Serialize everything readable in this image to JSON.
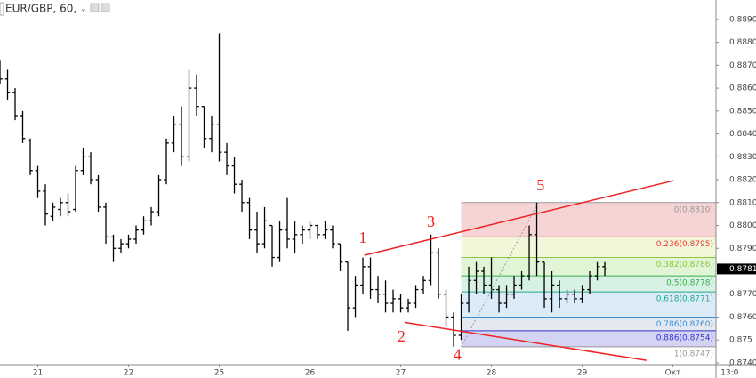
{
  "chart_data": {
    "type": "ohlc",
    "title": "EUR/GBP, 60,",
    "color": "#000000",
    "x": [
      0,
      1,
      2,
      3,
      4,
      5,
      6,
      7,
      8,
      9,
      10,
      11,
      12,
      13,
      14,
      15,
      16,
      17,
      18,
      19,
      20,
      21,
      22,
      23,
      24,
      25,
      26,
      27,
      28,
      29,
      30,
      31,
      32,
      33,
      34,
      35,
      36,
      37,
      38,
      39,
      40,
      41,
      42,
      43,
      44,
      45,
      46,
      47,
      48,
      49,
      50,
      51,
      52,
      53,
      54,
      55,
      56,
      57,
      58,
      59,
      60,
      61,
      62,
      63,
      64,
      65,
      66,
      67,
      68,
      69,
      70,
      71,
      72,
      73,
      74,
      75,
      76,
      77,
      78,
      79,
      80
    ],
    "open": [
      0.887,
      0.8864,
      0.8858,
      0.8848,
      0.8837,
      0.8824,
      0.8815,
      0.8804,
      0.8807,
      0.881,
      0.8807,
      0.8824,
      0.883,
      0.882,
      0.8808,
      0.8795,
      0.879,
      0.8792,
      0.8794,
      0.8798,
      0.8802,
      0.8806,
      0.882,
      0.8836,
      0.8844,
      0.883,
      0.886,
      0.8852,
      0.8838,
      0.8844,
      0.8832,
      0.8826,
      0.8818,
      0.881,
      0.8798,
      0.8792,
      0.88,
      0.8786,
      0.8798,
      0.8794,
      0.8796,
      0.8798,
      0.88,
      0.8796,
      0.8798,
      0.8792,
      0.8784,
      0.8764,
      0.8774,
      0.8782,
      0.8772,
      0.877,
      0.8766,
      0.8768,
      0.8764,
      0.8766,
      0.8772,
      0.8776,
      0.8788,
      0.877,
      0.876,
      0.8752,
      0.8766,
      0.8776,
      0.878,
      0.8774,
      0.8772,
      0.8766,
      0.877,
      0.8774,
      0.8778,
      0.8796,
      0.8784,
      0.8768,
      0.8774,
      0.8768,
      0.877,
      0.8768,
      0.8772,
      0.8778,
      0.8782
    ],
    "high": [
      0.8872,
      0.8868,
      0.886,
      0.885,
      0.8838,
      0.8826,
      0.8818,
      0.881,
      0.8812,
      0.8814,
      0.8826,
      0.8834,
      0.8832,
      0.8822,
      0.881,
      0.8796,
      0.8794,
      0.8796,
      0.88,
      0.8804,
      0.8808,
      0.8822,
      0.8838,
      0.8848,
      0.8852,
      0.8868,
      0.8866,
      0.8852,
      0.8848,
      0.8884,
      0.8836,
      0.883,
      0.882,
      0.8812,
      0.8806,
      0.8808,
      0.88,
      0.8802,
      0.8812,
      0.8802,
      0.88,
      0.8802,
      0.88,
      0.8802,
      0.88,
      0.8792,
      0.8784,
      0.8778,
      0.8786,
      0.8786,
      0.8778,
      0.8776,
      0.8772,
      0.877,
      0.8768,
      0.8774,
      0.8778,
      0.8796,
      0.879,
      0.8772,
      0.8762,
      0.877,
      0.8782,
      0.8784,
      0.8782,
      0.8786,
      0.8774,
      0.8774,
      0.8778,
      0.878,
      0.88,
      0.881,
      0.8784,
      0.878,
      0.8776,
      0.8772,
      0.8772,
      0.8774,
      0.878,
      0.8784,
      0.8784
    ],
    "low": [
      0.8862,
      0.8855,
      0.8846,
      0.8836,
      0.8822,
      0.8812,
      0.88,
      0.8802,
      0.8804,
      0.8804,
      0.8806,
      0.8822,
      0.8818,
      0.8806,
      0.8792,
      0.8784,
      0.8788,
      0.879,
      0.8792,
      0.8796,
      0.88,
      0.8804,
      0.8818,
      0.8832,
      0.8826,
      0.8828,
      0.8848,
      0.8834,
      0.8832,
      0.8828,
      0.8822,
      0.8814,
      0.8806,
      0.8794,
      0.8788,
      0.879,
      0.8782,
      0.8784,
      0.879,
      0.8788,
      0.8792,
      0.8794,
      0.8794,
      0.8794,
      0.879,
      0.878,
      0.8754,
      0.876,
      0.877,
      0.8768,
      0.8766,
      0.8762,
      0.8762,
      0.8762,
      0.8762,
      0.8764,
      0.877,
      0.8774,
      0.8768,
      0.8756,
      0.8747,
      0.875,
      0.8762,
      0.877,
      0.877,
      0.8768,
      0.8762,
      0.8764,
      0.8768,
      0.8772,
      0.8776,
      0.8778,
      0.8764,
      0.8762,
      0.8764,
      0.8766,
      0.8766,
      0.8766,
      0.877,
      0.8776,
      0.8778
    ],
    "close": [
      0.8864,
      0.8858,
      0.8848,
      0.8838,
      0.8824,
      0.8815,
      0.8805,
      0.8808,
      0.881,
      0.8806,
      0.8824,
      0.883,
      0.882,
      0.8808,
      0.8795,
      0.879,
      0.8792,
      0.8794,
      0.8798,
      0.8802,
      0.8806,
      0.882,
      0.8836,
      0.8844,
      0.883,
      0.886,
      0.8852,
      0.8838,
      0.8844,
      0.8832,
      0.8826,
      0.8818,
      0.881,
      0.8798,
      0.8792,
      0.8802,
      0.8786,
      0.8798,
      0.8794,
      0.8796,
      0.8798,
      0.88,
      0.8796,
      0.8798,
      0.8792,
      0.8784,
      0.8764,
      0.8774,
      0.8782,
      0.8772,
      0.877,
      0.8766,
      0.8768,
      0.8764,
      0.8766,
      0.8772,
      0.8776,
      0.8788,
      0.877,
      0.876,
      0.8752,
      0.8766,
      0.8776,
      0.878,
      0.8774,
      0.8772,
      0.8766,
      0.877,
      0.8774,
      0.8778,
      0.8796,
      0.8784,
      0.8768,
      0.8774,
      0.8768,
      0.877,
      0.8768,
      0.8772,
      0.8778,
      0.8782,
      0.8781
    ],
    "xlim": [
      0,
      94.7
    ],
    "xticks": [
      {
        "value": 5,
        "label": "21"
      },
      {
        "value": 17,
        "label": "22"
      },
      {
        "value": 29,
        "label": "25"
      },
      {
        "value": 41,
        "label": "26"
      },
      {
        "value": 53,
        "label": "27"
      },
      {
        "value": 65,
        "label": "28"
      },
      {
        "value": 77,
        "label": "29"
      },
      {
        "value": 89,
        "label": "Окт"
      },
      {
        "value": 96.5,
        "label": "13:0"
      }
    ],
    "ylim": [
      0.87392,
      0.88985
    ],
    "yticks": [
      {
        "value": 0.874,
        "label": "0.8740"
      },
      0.875,
      {
        "value": 0.876,
        "label": "0.8760"
      },
      {
        "value": 0.877,
        "label": "0.8770"
      },
      {
        "value": 0.878,
        "label": "0.8780"
      },
      {
        "value": 0.879,
        "label": "0.8790"
      },
      {
        "value": 0.88,
        "label": "0.8800"
      },
      {
        "value": 0.881,
        "label": "0.8810"
      },
      {
        "value": 0.882,
        "label": "0.8820"
      },
      {
        "value": 0.883,
        "label": "0.8830"
      },
      {
        "value": 0.884,
        "label": "0.8840"
      },
      {
        "value": 0.885,
        "label": "0.8850"
      },
      {
        "value": 0.886,
        "label": "0.8860"
      },
      {
        "value": 0.887,
        "label": "0.8870"
      },
      {
        "value": 0.888,
        "label": "0.8880"
      },
      {
        "value": 0.889,
        "label": "0.8890"
      }
    ],
    "last": {
      "value": 0.8781,
      "label": "0.8781"
    },
    "fib": {
      "x_start": 61,
      "levels": [
        {
          "value": 0.881,
          "label": "0(0.8810)",
          "color": "#999999",
          "fill": "#f5c9c9"
        },
        {
          "value": 0.8795,
          "label": "0.236(0.8795)",
          "color": "#e0403a",
          "fill": "#f0f4cf"
        },
        {
          "value": 0.8786,
          "label": "0.382(0.8786)",
          "color": "#8cc43c",
          "fill": "#d7f2cc"
        },
        {
          "value": 0.8778,
          "label": "0.5(0.8778)",
          "color": "#3ab04a",
          "fill": "#cdeedd"
        },
        {
          "value": 0.8771,
          "label": "0.618(0.8771)",
          "color": "#25a88a",
          "fill": "#d2e6f5"
        },
        {
          "value": 0.876,
          "label": "0.786(0.8760)",
          "color": "#3c8ed0",
          "fill": "#dde4ee"
        },
        {
          "value": 0.8754,
          "label": "0.886(0.8754)",
          "color": "#3434c8",
          "fill": "#c8c8f0"
        },
        {
          "value": 0.8747,
          "label": "1(0.8747)",
          "color": "#999999"
        }
      ]
    },
    "lines": [
      {
        "color": "#ee2222",
        "x": [
          48.2,
          89.1
        ],
        "y": [
          0.8787,
          0.88196
        ]
      },
      {
        "color": "#ee2222",
        "x": [
          53.5,
          85.5
        ],
        "y": [
          0.87577,
          0.87411
        ]
      },
      {
        "color": "#999999",
        "dashed": true,
        "x": [
          61,
          71.2
        ],
        "y": [
          0.8747,
          0.881
        ]
      }
    ],
    "annotations": [
      {
        "text": "1",
        "x": 48,
        "y": 0.8794
      },
      {
        "text": "2",
        "x": 53.1,
        "y": 0.8751
      },
      {
        "text": "3",
        "x": 57,
        "y": 0.8801
      },
      {
        "text": "4",
        "x": 60.5,
        "y": 0.8743
      },
      {
        "text": "5",
        "x": 71.5,
        "y": 0.8817
      }
    ],
    "annotation_color": "#ee2222"
  }
}
